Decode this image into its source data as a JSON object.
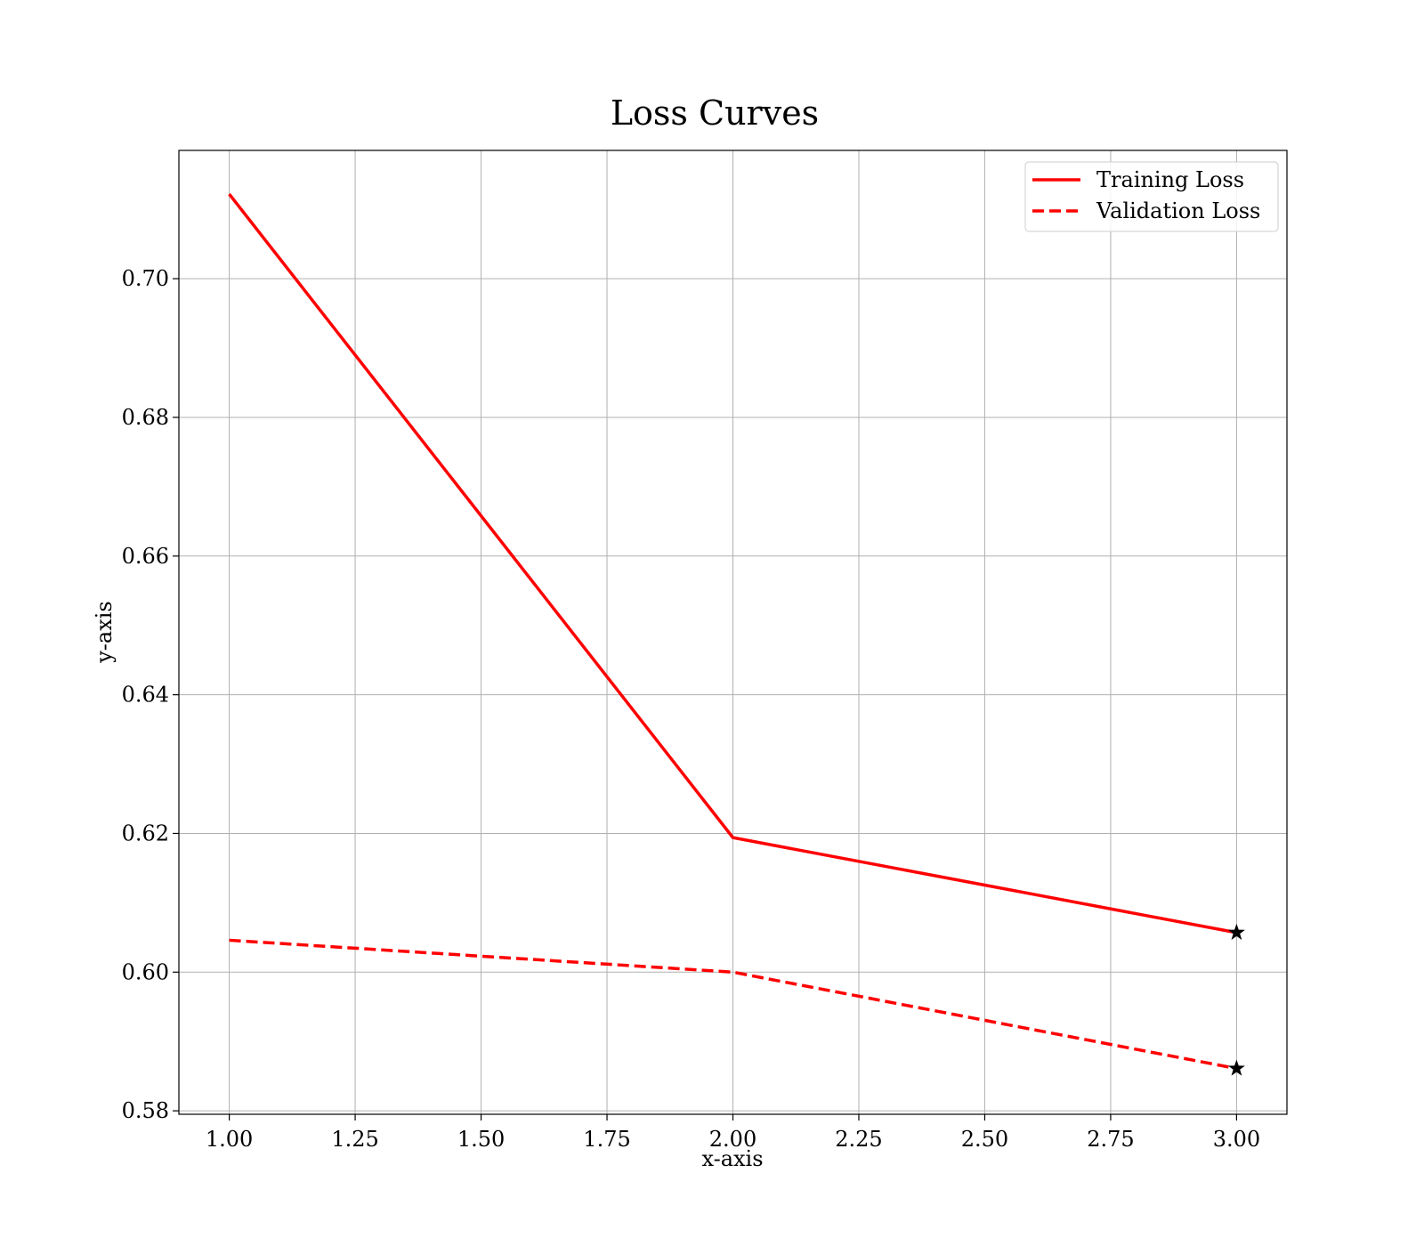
{
  "chart_data": {
    "type": "line",
    "title": "Loss Curves",
    "xlabel": "x-axis",
    "ylabel": "y-axis",
    "xlim": [
      0.9,
      3.1
    ],
    "ylim": [
      0.5795,
      0.7185
    ],
    "x_ticks": [
      1.0,
      1.25,
      1.5,
      1.75,
      2.0,
      2.25,
      2.5,
      2.75,
      3.0
    ],
    "x_tick_labels": [
      "1.00",
      "1.25",
      "1.50",
      "1.75",
      "2.00",
      "2.25",
      "2.50",
      "2.75",
      "3.00"
    ],
    "y_ticks": [
      0.58,
      0.6,
      0.62,
      0.64,
      0.66,
      0.68,
      0.7
    ],
    "y_tick_labels": [
      "0.58",
      "0.60",
      "0.62",
      "0.64",
      "0.66",
      "0.68",
      "0.70"
    ],
    "grid": true,
    "legend_position": "top-right",
    "x": [
      1,
      2,
      3
    ],
    "series": [
      {
        "name": "Training Loss",
        "values": [
          0.7122,
          0.6194,
          0.6057
        ],
        "color": "#ff0000",
        "style": "solid",
        "end_marker": "star"
      },
      {
        "name": "Validation Loss",
        "values": [
          0.6046,
          0.6,
          0.5861
        ],
        "color": "#ff0000",
        "style": "dashed",
        "end_marker": "star"
      }
    ],
    "marker_color": "#000000"
  }
}
